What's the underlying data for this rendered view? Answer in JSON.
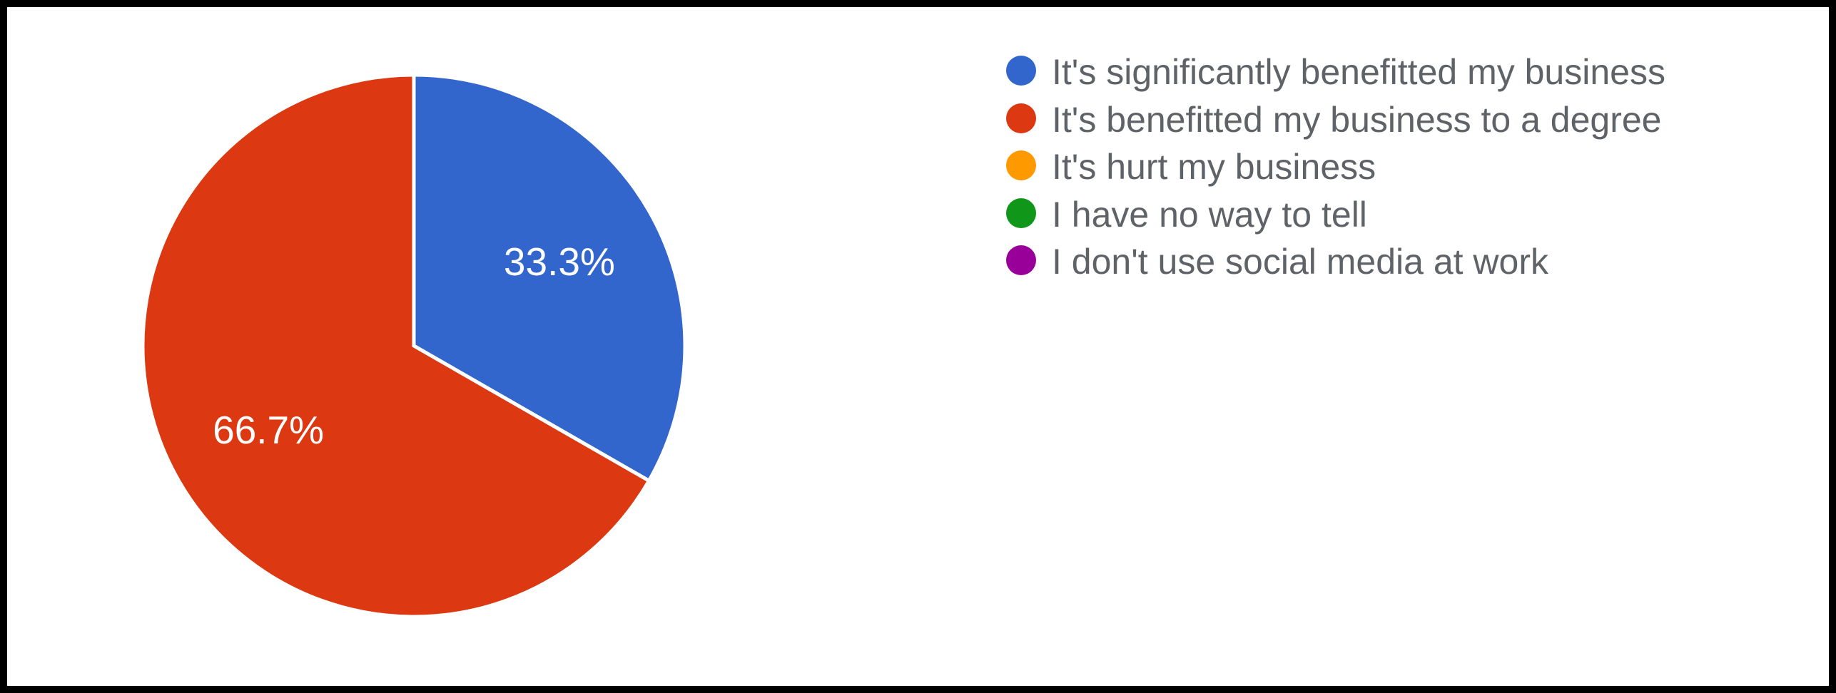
{
  "chart": {
    "type": "pie",
    "background_color": "#ffffff",
    "border_color": "#000000",
    "border_width": 10,
    "pie_radius": 380,
    "slice_stroke": "#ffffff",
    "slice_stroke_width": 5,
    "label_color": "#ffffff",
    "label_fontsize": 55,
    "slices": [
      {
        "label": "It's significantly benefitted my business",
        "value": 33.3,
        "display": "33.3%",
        "color": "#3366cc"
      },
      {
        "label": "It's benefitted my business to a degree",
        "value": 66.7,
        "display": "66.7%",
        "color": "#dc3912"
      },
      {
        "label": "It's hurt my business",
        "value": 0,
        "display": "",
        "color": "#ff9900"
      },
      {
        "label": "I have no way to tell",
        "value": 0,
        "display": "",
        "color": "#109618"
      },
      {
        "label": "I don't use social media at work",
        "value": 0,
        "display": "",
        "color": "#990099"
      }
    ],
    "legend": {
      "fontsize": 50,
      "text_color": "#5f6368",
      "swatch_size": 42,
      "items": [
        {
          "label": "It's significantly benefitted my business",
          "color": "#3366cc"
        },
        {
          "label": "It's benefitted my business to a degree",
          "color": "#dc3912"
        },
        {
          "label": "It's hurt my business",
          "color": "#ff9900"
        },
        {
          "label": "I have no way to tell",
          "color": "#109618"
        },
        {
          "label": "I don't use social media at work",
          "color": "#990099"
        }
      ]
    }
  }
}
